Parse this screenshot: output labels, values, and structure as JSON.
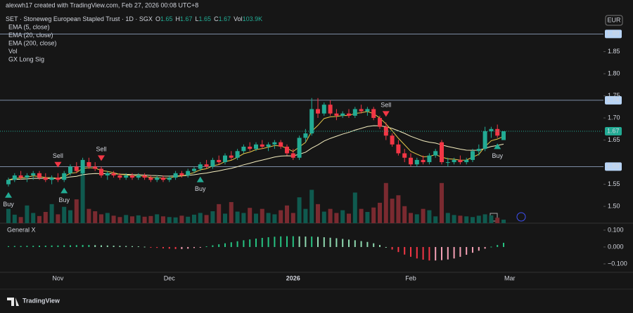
{
  "chart_data": {
    "type": "candlestick",
    "watermark": "alexwh17 created with TradingView.com, Feb 27, 2026 00:08 UTC+8",
    "title": "SET · Stoneweg European Stapled Trust · 1D · SGX",
    "ohlc_letters": [
      "O",
      "H",
      "L",
      "C"
    ],
    "volume_name": "Vol",
    "last_volume_label": "103.9K",
    "indicators": [
      "EMA (5, close)",
      "EMA (20, close)",
      "EMA (200, close)",
      "Vol",
      "GX Long Sig"
    ],
    "currency": "EUR",
    "oscillator_name": "General X",
    "brand": "TradingView",
    "categories": [
      null,
      null,
      null,
      null,
      null,
      null,
      null,
      null,
      "Nov",
      null,
      null,
      null,
      null,
      null,
      null,
      null,
      null,
      null,
      null,
      null,
      null,
      null,
      null,
      null,
      null,
      null,
      "Dec",
      null,
      null,
      null,
      null,
      null,
      null,
      null,
      null,
      null,
      null,
      null,
      null,
      null,
      null,
      null,
      null,
      null,
      null,
      null,
      "2026",
      null,
      null,
      null,
      null,
      null,
      null,
      null,
      null,
      null,
      null,
      null,
      null,
      null,
      null,
      null,
      null,
      null,
      null,
      "Feb",
      null,
      null,
      null,
      null,
      null,
      null,
      null,
      null,
      null,
      null,
      null,
      null,
      null,
      null,
      null,
      "Mar"
    ],
    "open": [
      1.55,
      1.56,
      1.57,
      1.565,
      1.57,
      1.575,
      1.565,
      1.56,
      1.565,
      1.56,
      1.575,
      1.59,
      1.575,
      1.6,
      1.59,
      1.585,
      1.57,
      1.575,
      1.57,
      1.565,
      1.57,
      1.565,
      1.57,
      1.565,
      1.56,
      1.565,
      1.56,
      1.565,
      1.575,
      1.57,
      1.58,
      1.585,
      1.595,
      1.59,
      1.605,
      1.6,
      1.615,
      1.61,
      1.625,
      1.635,
      1.63,
      1.64,
      1.635,
      1.64,
      1.645,
      1.635,
      1.62,
      1.61,
      1.655,
      1.665,
      1.72,
      1.71,
      1.73,
      1.71,
      1.705,
      1.71,
      1.705,
      1.72,
      1.715,
      1.72,
      1.7,
      1.68,
      1.66,
      1.64,
      1.62,
      1.61,
      1.595,
      1.605,
      1.6,
      1.615,
      1.645,
      1.6,
      1.6,
      1.605,
      1.6,
      1.605,
      1.625,
      1.63,
      1.67,
      1.675,
      1.65,
      null
    ],
    "high": [
      1.565,
      1.575,
      1.58,
      1.575,
      1.58,
      1.58,
      1.575,
      1.57,
      1.575,
      1.58,
      1.595,
      1.6,
      1.61,
      1.61,
      1.6,
      1.59,
      1.58,
      1.58,
      1.575,
      1.575,
      1.575,
      1.575,
      1.575,
      1.57,
      1.57,
      1.57,
      1.57,
      1.58,
      1.58,
      1.585,
      1.59,
      1.6,
      1.605,
      1.61,
      1.615,
      1.62,
      1.625,
      1.63,
      1.64,
      1.645,
      1.645,
      1.65,
      1.645,
      1.65,
      1.65,
      1.64,
      1.63,
      1.66,
      1.675,
      1.745,
      1.745,
      1.735,
      1.74,
      1.72,
      1.715,
      1.72,
      1.725,
      1.73,
      1.725,
      1.725,
      1.705,
      1.69,
      1.665,
      1.65,
      1.63,
      1.62,
      1.61,
      1.615,
      1.62,
      1.63,
      1.65,
      1.61,
      1.61,
      1.615,
      1.61,
      1.63,
      1.64,
      1.68,
      1.68,
      1.685,
      1.67,
      null
    ],
    "low": [
      1.545,
      1.555,
      1.56,
      1.555,
      1.56,
      1.56,
      1.555,
      1.55,
      1.555,
      1.555,
      1.57,
      1.575,
      1.57,
      1.585,
      1.58,
      1.565,
      1.56,
      1.565,
      1.56,
      1.56,
      1.56,
      1.56,
      1.56,
      1.555,
      1.555,
      1.555,
      1.555,
      1.56,
      1.565,
      1.565,
      1.575,
      1.58,
      1.585,
      1.585,
      1.595,
      1.595,
      1.605,
      1.605,
      1.62,
      1.625,
      1.625,
      1.63,
      1.625,
      1.63,
      1.63,
      1.615,
      1.605,
      1.605,
      1.645,
      1.66,
      1.7,
      1.705,
      1.705,
      1.695,
      1.7,
      1.7,
      1.7,
      1.71,
      1.705,
      1.695,
      1.675,
      1.65,
      1.635,
      1.615,
      1.6,
      1.59,
      1.59,
      1.595,
      1.595,
      1.61,
      1.595,
      1.59,
      1.595,
      1.595,
      1.595,
      1.6,
      1.615,
      1.625,
      1.655,
      1.655,
      1.65,
      null
    ],
    "close": [
      1.56,
      1.57,
      1.565,
      1.57,
      1.575,
      1.565,
      1.56,
      1.565,
      1.56,
      1.575,
      1.59,
      1.58,
      1.605,
      1.59,
      1.585,
      1.57,
      1.575,
      1.57,
      1.565,
      1.57,
      1.565,
      1.57,
      1.565,
      1.56,
      1.565,
      1.56,
      1.565,
      1.575,
      1.57,
      1.58,
      1.585,
      1.595,
      1.59,
      1.605,
      1.6,
      1.615,
      1.61,
      1.625,
      1.635,
      1.63,
      1.64,
      1.635,
      1.64,
      1.645,
      1.635,
      1.62,
      1.61,
      1.655,
      1.665,
      1.72,
      1.71,
      1.73,
      1.71,
      1.705,
      1.71,
      1.705,
      1.72,
      1.715,
      1.72,
      1.7,
      1.68,
      1.66,
      1.64,
      1.62,
      1.61,
      1.595,
      1.605,
      1.6,
      1.615,
      1.625,
      1.6,
      1.6,
      1.605,
      1.6,
      1.605,
      1.625,
      1.63,
      1.67,
      1.675,
      1.66,
      1.67,
      null
    ],
    "volume": [
      420,
      250,
      180,
      520,
      300,
      210,
      330,
      560,
      260,
      480,
      380,
      700,
      1650,
      420,
      350,
      260,
      300,
      220,
      180,
      240,
      200,
      230,
      190,
      210,
      260,
      200,
      180,
      170,
      220,
      190,
      250,
      300,
      240,
      350,
      560,
      280,
      620,
      340,
      300,
      450,
      280,
      420,
      300,
      260,
      380,
      520,
      300,
      760,
      420,
      980,
      560,
      340,
      420,
      300,
      380,
      280,
      900,
      420,
      330,
      460,
      600,
      1180,
      720,
      820,
      500,
      300,
      260,
      420,
      380,
      200,
      1180,
      300,
      240,
      220,
      200,
      180,
      220,
      260,
      230,
      160,
      103.9,
      null
    ],
    "oscillator": [
      0.005,
      0.006,
      0.006,
      0.007,
      0.007,
      0.008,
      0.008,
      0.009,
      0.009,
      0.01,
      0.01,
      0.011,
      0.012,
      0.012,
      0.011,
      0.01,
      0.009,
      0.008,
      0.007,
      0.006,
      0.005,
      0.004,
      0.002,
      -0.002,
      -0.005,
      -0.008,
      -0.01,
      -0.012,
      -0.012,
      -0.01,
      -0.006,
      -0.002,
      0.004,
      0.01,
      0.016,
      0.022,
      0.028,
      0.034,
      0.04,
      0.045,
      0.05,
      0.054,
      0.058,
      0.061,
      0.063,
      0.064,
      0.064,
      0.063,
      0.062,
      0.062,
      0.06,
      0.058,
      0.055,
      0.052,
      0.048,
      0.044,
      0.04,
      0.035,
      0.03,
      0.022,
      0.012,
      0.0,
      -0.015,
      -0.03,
      -0.045,
      -0.058,
      -0.068,
      -0.075,
      -0.08,
      -0.08,
      -0.078,
      -0.074,
      -0.068,
      -0.058,
      -0.046,
      -0.034,
      -0.022,
      -0.01,
      0.002,
      0.012,
      0.025,
      null
    ],
    "signals": [
      "Buy",
      null,
      null,
      null,
      null,
      null,
      null,
      null,
      "Sell",
      "Buy",
      null,
      null,
      null,
      null,
      null,
      "Sell",
      null,
      null,
      null,
      null,
      null,
      null,
      null,
      null,
      null,
      null,
      null,
      null,
      null,
      null,
      null,
      "Buy",
      null,
      null,
      null,
      null,
      null,
      null,
      null,
      null,
      null,
      null,
      null,
      null,
      null,
      null,
      null,
      null,
      null,
      null,
      null,
      null,
      null,
      null,
      null,
      null,
      null,
      null,
      null,
      null,
      null,
      "Sell",
      null,
      null,
      null,
      null,
      null,
      null,
      null,
      null,
      null,
      null,
      null,
      null,
      null,
      null,
      null,
      null,
      null,
      "Buy",
      null,
      null
    ],
    "ylim": [
      1.462,
      1.935
    ],
    "yticks": [
      {
        "value": 1.5,
        "label": "1.50"
      },
      {
        "value": 1.55,
        "label": "1.55"
      },
      {
        "value": 1.65,
        "label": "1.65"
      },
      {
        "value": 1.7,
        "label": "1.70"
      },
      {
        "value": 1.75,
        "label": "1.75"
      },
      {
        "value": 1.8,
        "label": "1.80"
      },
      {
        "value": 1.85,
        "label": "1.85"
      }
    ],
    "price_lines": [
      1.89,
      1.74,
      1.59
    ],
    "last_price": 1.67,
    "y2lim": [
      -0.15,
      0.133
    ],
    "y2ticks": [
      {
        "value": 0.1,
        "label": "0.100"
      },
      {
        "value": 0,
        "label": "0.000"
      },
      {
        "value": -0.1,
        "label": "−0.100"
      }
    ],
    "up_color": "#22ab94",
    "down_color": "#f23645"
  }
}
